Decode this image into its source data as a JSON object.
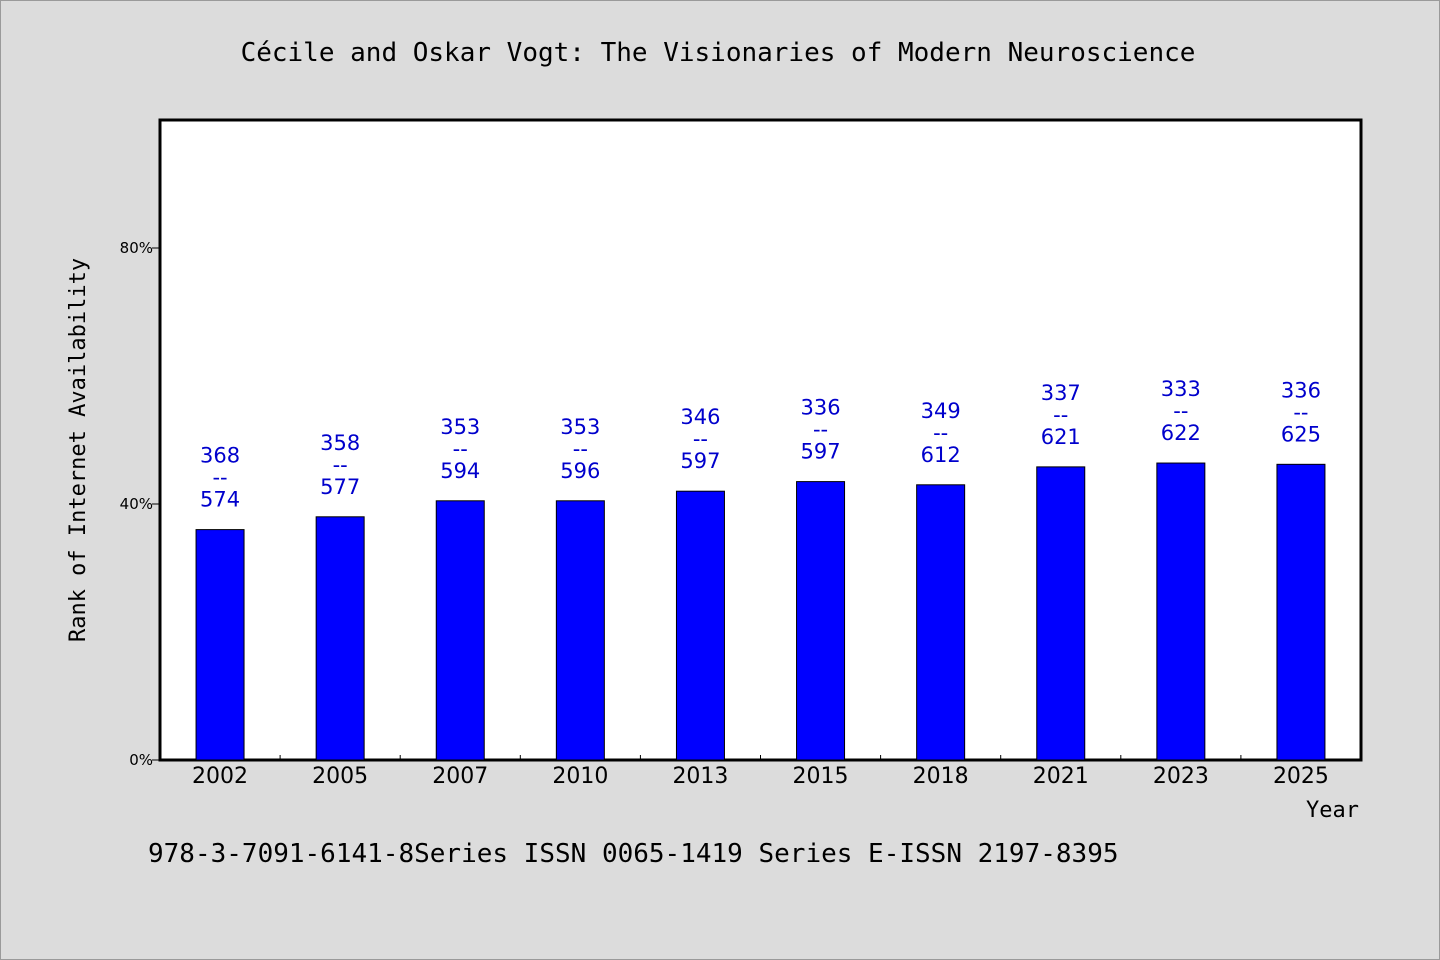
{
  "chart_data": {
    "type": "bar",
    "title": "Cécile and Oskar Vogt: The Visionaries of Modern Neuroscience",
    "xlabel": "Year",
    "ylabel": "Rank of Internet Availability",
    "footer": "978-3-7091-6141-8Series ISSN 0065-1419 Series E-ISSN 2197-8395",
    "categories": [
      "2002",
      "2005",
      "2007",
      "2010",
      "2013",
      "2015",
      "2018",
      "2021",
      "2023",
      "2025"
    ],
    "values": [
      36.0,
      38.0,
      40.5,
      40.5,
      42.0,
      43.5,
      43.0,
      45.8,
      46.4,
      46.2
    ],
    "labels": [
      [
        "368",
        "--",
        "574"
      ],
      [
        "358",
        "--",
        "577"
      ],
      [
        "353",
        "--",
        "594"
      ],
      [
        "353",
        "--",
        "596"
      ],
      [
        "346",
        "--",
        "597"
      ],
      [
        "336",
        "--",
        "597"
      ],
      [
        "349",
        "--",
        "612"
      ],
      [
        "337",
        "--",
        "621"
      ],
      [
        "333",
        "--",
        "622"
      ],
      [
        "336",
        "--",
        "625"
      ]
    ],
    "yticks": [
      0,
      40,
      80
    ],
    "ytick_labels": [
      "0%",
      "40%",
      "80%"
    ],
    "ylim": [
      0,
      100
    ],
    "grid": false,
    "colors": {
      "bar": "#0000ff",
      "bar_label": "#0000cc",
      "background": "#dcdcdc",
      "plot_background": "#ffffff"
    }
  }
}
